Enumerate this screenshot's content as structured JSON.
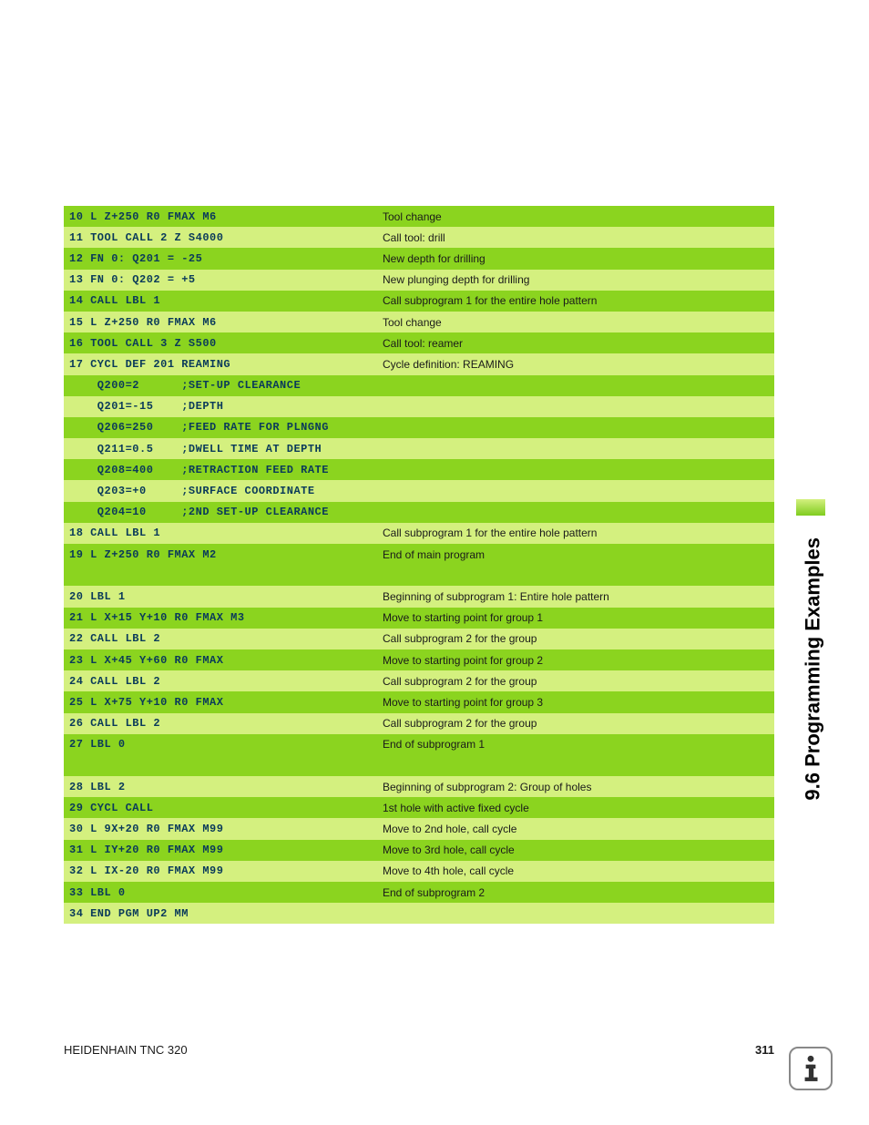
{
  "sidebar": {
    "title": "9.6 Programming Examples"
  },
  "colors": {
    "dark_row": "#8bd41f",
    "light_row": "#d4f07f",
    "code_text": "#0a3a5a",
    "desc_text": "#1a1a1a",
    "page_bg": "#ffffff"
  },
  "rows": [
    {
      "shade": "dark",
      "code": "10 L Z+250 R0 FMAX M6",
      "desc": "Tool change"
    },
    {
      "shade": "light",
      "code": "11 TOOL CALL 2 Z S4000",
      "desc": "Call tool: drill"
    },
    {
      "shade": "dark",
      "code": "12 FN 0: Q201 = -25",
      "desc": "New depth for drilling"
    },
    {
      "shade": "light",
      "code": "13 FN 0: Q202 = +5",
      "desc": "New plunging depth for drilling"
    },
    {
      "shade": "dark",
      "code": "14 CALL LBL 1",
      "desc": "Call subprogram 1 for the entire hole pattern"
    },
    {
      "shade": "light",
      "code": "15 L Z+250 R0 FMAX M6",
      "desc": "Tool change"
    },
    {
      "shade": "dark",
      "code": "16 TOOL CALL 3 Z S500",
      "desc": "Call tool: reamer"
    },
    {
      "shade": "light",
      "code": "17 CYCL DEF 201 REAMING",
      "desc": "Cycle definition: REAMING"
    },
    {
      "shade": "dark",
      "code": "    Q200=2      ;SET-UP CLEARANCE",
      "desc": ""
    },
    {
      "shade": "light",
      "code": "    Q201=-15    ;DEPTH",
      "desc": ""
    },
    {
      "shade": "dark",
      "code": "    Q206=250    ;FEED RATE FOR PLNGNG",
      "desc": ""
    },
    {
      "shade": "light",
      "code": "    Q211=0.5    ;DWELL TIME AT DEPTH",
      "desc": ""
    },
    {
      "shade": "dark",
      "code": "    Q208=400    ;RETRACTION FEED RATE",
      "desc": ""
    },
    {
      "shade": "light",
      "code": "    Q203=+0     ;SURFACE COORDINATE",
      "desc": ""
    },
    {
      "shade": "dark",
      "code": "    Q204=10     ;2ND SET-UP CLEARANCE",
      "desc": ""
    },
    {
      "shade": "light",
      "code": "18 CALL LBL 1",
      "desc": "Call subprogram 1 for the entire hole pattern"
    },
    {
      "shade": "dark",
      "code": "19 L Z+250 R0 FMAX M2",
      "desc": "End of main program"
    },
    {
      "shade": "dark",
      "code": "",
      "desc": ""
    },
    {
      "shade": "light",
      "code": "20 LBL 1",
      "desc": "Beginning of subprogram 1: Entire hole pattern"
    },
    {
      "shade": "dark",
      "code": "21 L X+15 Y+10 R0 FMAX M3",
      "desc": "Move to starting point for group 1"
    },
    {
      "shade": "light",
      "code": "22 CALL LBL 2",
      "desc": "Call subprogram 2 for the group"
    },
    {
      "shade": "dark",
      "code": "23 L X+45 Y+60 R0 FMAX",
      "desc": "Move to starting point for group 2"
    },
    {
      "shade": "light",
      "code": "24 CALL LBL 2",
      "desc": "Call subprogram 2 for the group"
    },
    {
      "shade": "dark",
      "code": "25 L X+75 Y+10 R0 FMAX",
      "desc": "Move to starting point for group 3"
    },
    {
      "shade": "light",
      "code": "26 CALL LBL 2",
      "desc": "Call subprogram 2 for the group"
    },
    {
      "shade": "dark",
      "code": "27 LBL 0",
      "desc": "End of subprogram 1"
    },
    {
      "shade": "dark",
      "code": "",
      "desc": ""
    },
    {
      "shade": "light",
      "code": "28 LBL 2",
      "desc": "Beginning of subprogram 2: Group of holes"
    },
    {
      "shade": "dark",
      "code": "29 CYCL CALL",
      "desc": "1st hole with active fixed cycle"
    },
    {
      "shade": "light",
      "code": "30 L 9X+20 R0 FMAX M99",
      "desc": "Move to 2nd hole, call cycle"
    },
    {
      "shade": "dark",
      "code": "31 L IY+20 R0 FMAX M99",
      "desc": "Move to 3rd hole, call cycle"
    },
    {
      "shade": "light",
      "code": "32 L IX-20 R0 FMAX M99",
      "desc": "Move to 4th hole, call cycle"
    },
    {
      "shade": "dark",
      "code": "33 LBL 0",
      "desc": "End of subprogram 2"
    },
    {
      "shade": "light",
      "code": "34 END PGM UP2 MM",
      "desc": ""
    }
  ],
  "footer": {
    "left": "HEIDENHAIN TNC 320",
    "page": "311"
  }
}
